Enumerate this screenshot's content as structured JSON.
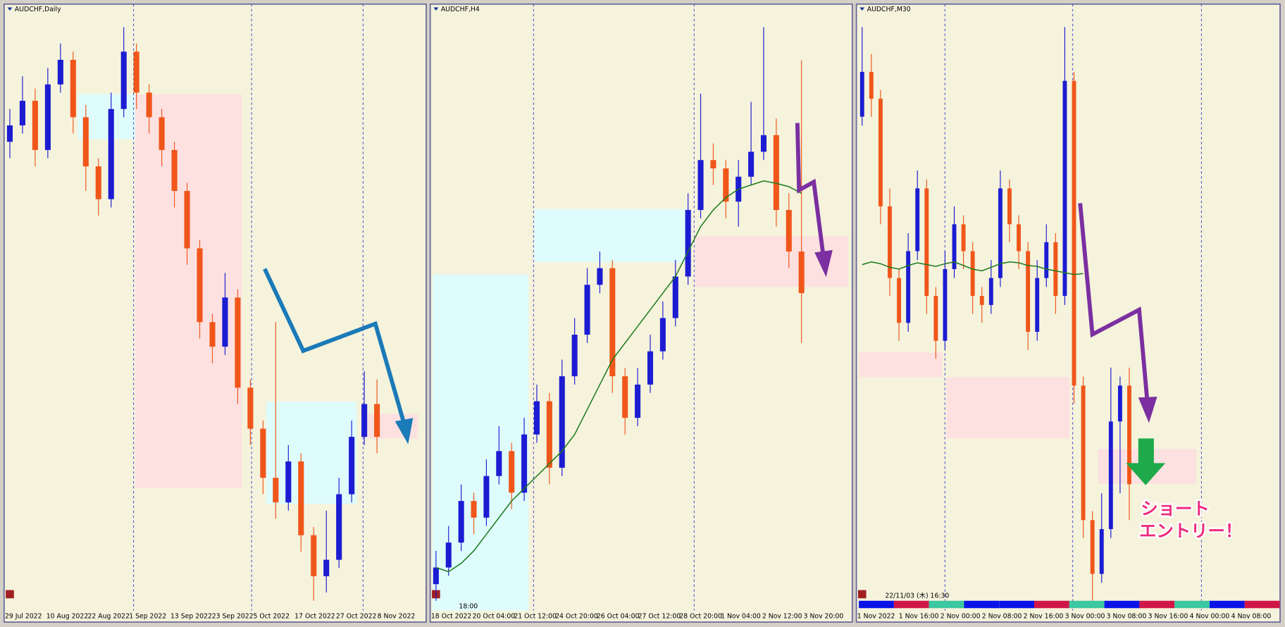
{
  "panels": [
    {
      "title": "AUDCHF,Daily",
      "time_labels": [
        "29 Jul 2022",
        "10 Aug 2022",
        "22 Aug 2022",
        "1 Sep 2022",
        "13 Sep 2022",
        "23 Sep 2022",
        "5 Oct 2022",
        "17 Oct 2022",
        "27 Oct 2022",
        "8 Nov 2022"
      ],
      "candles": [
        [
          580,
          620,
          560,
          600
        ],
        [
          600,
          660,
          590,
          630
        ],
        [
          630,
          645,
          550,
          570
        ],
        [
          570,
          670,
          560,
          650
        ],
        [
          650,
          700,
          640,
          680
        ],
        [
          680,
          690,
          590,
          610
        ],
        [
          610,
          625,
          520,
          550
        ],
        [
          550,
          560,
          490,
          510
        ],
        [
          510,
          640,
          500,
          620
        ],
        [
          620,
          720,
          610,
          690
        ],
        [
          690,
          700,
          620,
          640
        ],
        [
          640,
          650,
          590,
          610
        ],
        [
          610,
          620,
          550,
          570
        ],
        [
          570,
          580,
          500,
          520
        ],
        [
          520,
          530,
          430,
          450
        ],
        [
          450,
          460,
          340,
          360
        ],
        [
          360,
          370,
          310,
          330
        ],
        [
          330,
          420,
          320,
          390
        ],
        [
          390,
          400,
          260,
          280
        ],
        [
          280,
          290,
          210,
          230
        ],
        [
          230,
          240,
          150,
          170
        ],
        [
          170,
          360,
          120,
          140
        ],
        [
          140,
          210,
          130,
          190
        ],
        [
          190,
          200,
          80,
          100
        ],
        [
          100,
          110,
          20,
          50
        ],
        [
          50,
          130,
          30,
          70
        ],
        [
          70,
          170,
          60,
          150
        ],
        [
          150,
          240,
          140,
          220
        ],
        [
          220,
          300,
          210,
          260
        ],
        [
          260,
          290,
          200,
          220
        ]
      ]
    },
    {
      "title": "AUDCHF,H4",
      "time_labels": [
        "18 Oct 2022",
        "20 Oct 04:00",
        "21 Oct 12:00",
        "24 Oct 20:00",
        "26 Oct 04:00",
        "27 Oct 12:00",
        "28 Oct 20:00",
        "1 Nov 04:00",
        "2 Nov 12:00",
        "3 Nov 20:00"
      ],
      "candles": [
        [
          50,
          90,
          30,
          70
        ],
        [
          70,
          120,
          60,
          100
        ],
        [
          100,
          170,
          90,
          150
        ],
        [
          150,
          160,
          110,
          130
        ],
        [
          130,
          200,
          120,
          180
        ],
        [
          180,
          240,
          170,
          210
        ],
        [
          210,
          220,
          140,
          160
        ],
        [
          160,
          250,
          150,
          230
        ],
        [
          230,
          290,
          220,
          270
        ],
        [
          270,
          280,
          170,
          190
        ],
        [
          190,
          320,
          180,
          300
        ],
        [
          300,
          370,
          290,
          350
        ],
        [
          350,
          430,
          340,
          410
        ],
        [
          410,
          450,
          400,
          430
        ],
        [
          430,
          440,
          280,
          300
        ],
        [
          300,
          310,
          230,
          250
        ],
        [
          250,
          310,
          240,
          290
        ],
        [
          290,
          350,
          280,
          330
        ],
        [
          330,
          390,
          320,
          370
        ],
        [
          370,
          440,
          360,
          420
        ],
        [
          420,
          520,
          410,
          500
        ],
        [
          500,
          640,
          490,
          560
        ],
        [
          560,
          580,
          530,
          550
        ],
        [
          550,
          560,
          490,
          510
        ],
        [
          510,
          560,
          480,
          540
        ],
        [
          540,
          630,
          530,
          570
        ],
        [
          570,
          720,
          560,
          590
        ],
        [
          590,
          610,
          480,
          500
        ],
        [
          500,
          520,
          430,
          450
        ],
        [
          450,
          680,
          340,
          400
        ]
      ],
      "ma": [
        70,
        65,
        75,
        90,
        110,
        130,
        150,
        165,
        180,
        195,
        210,
        230,
        260,
        290,
        320,
        340,
        360,
        380,
        400,
        420,
        450,
        480,
        500,
        515,
        525,
        530,
        535,
        532,
        528,
        520
      ]
    },
    {
      "title": "AUDCHF,M30",
      "time_labels": [
        "1 Nov 2022",
        "1 Nov 16:00",
        "2 Nov 00:00",
        "2 Nov 08:00",
        "2 Nov 16:00",
        "3 Nov 00:00",
        "3 Nov 08:00",
        "3 Nov 16:00",
        "4 Nov 00:00",
        "4 Nov 08:00"
      ],
      "candles": [
        [
          600,
          700,
          590,
          650
        ],
        [
          650,
          670,
          600,
          620
        ],
        [
          620,
          630,
          480,
          500
        ],
        [
          500,
          520,
          400,
          420
        ],
        [
          420,
          430,
          350,
          370
        ],
        [
          370,
          470,
          360,
          450
        ],
        [
          450,
          540,
          440,
          520
        ],
        [
          520,
          530,
          380,
          400
        ],
        [
          400,
          410,
          330,
          350
        ],
        [
          350,
          450,
          340,
          430
        ],
        [
          430,
          500,
          420,
          480
        ],
        [
          480,
          490,
          430,
          450
        ],
        [
          450,
          460,
          380,
          400
        ],
        [
          400,
          410,
          370,
          390
        ],
        [
          390,
          440,
          380,
          420
        ],
        [
          420,
          540,
          410,
          520
        ],
        [
          520,
          530,
          460,
          480
        ],
        [
          480,
          490,
          430,
          450
        ],
        [
          450,
          460,
          340,
          360
        ],
        [
          360,
          440,
          350,
          420
        ],
        [
          420,
          480,
          410,
          460
        ],
        [
          460,
          470,
          380,
          400
        ],
        [
          400,
          700,
          390,
          640
        ],
        [
          640,
          650,
          280,
          300
        ],
        [
          300,
          310,
          130,
          150
        ],
        [
          150,
          160,
          60,
          90
        ],
        [
          90,
          180,
          80,
          140
        ],
        [
          140,
          320,
          130,
          260
        ],
        [
          260,
          310,
          180,
          300
        ],
        [
          300,
          320,
          150,
          190
        ]
      ],
      "ma": [
        435,
        438,
        436,
        432,
        430,
        434,
        437,
        435,
        433,
        436,
        438,
        434,
        430,
        428,
        432,
        436,
        438,
        437,
        434,
        433,
        430,
        428,
        426,
        424,
        425,
        null,
        null,
        null,
        null,
        null
      ]
    }
  ],
  "annotations": {
    "cursor_time": "18:00",
    "status_time": "22/11/03 (木) 16:30",
    "entry_text": [
      "ショート",
      "エントリー！"
    ]
  }
}
